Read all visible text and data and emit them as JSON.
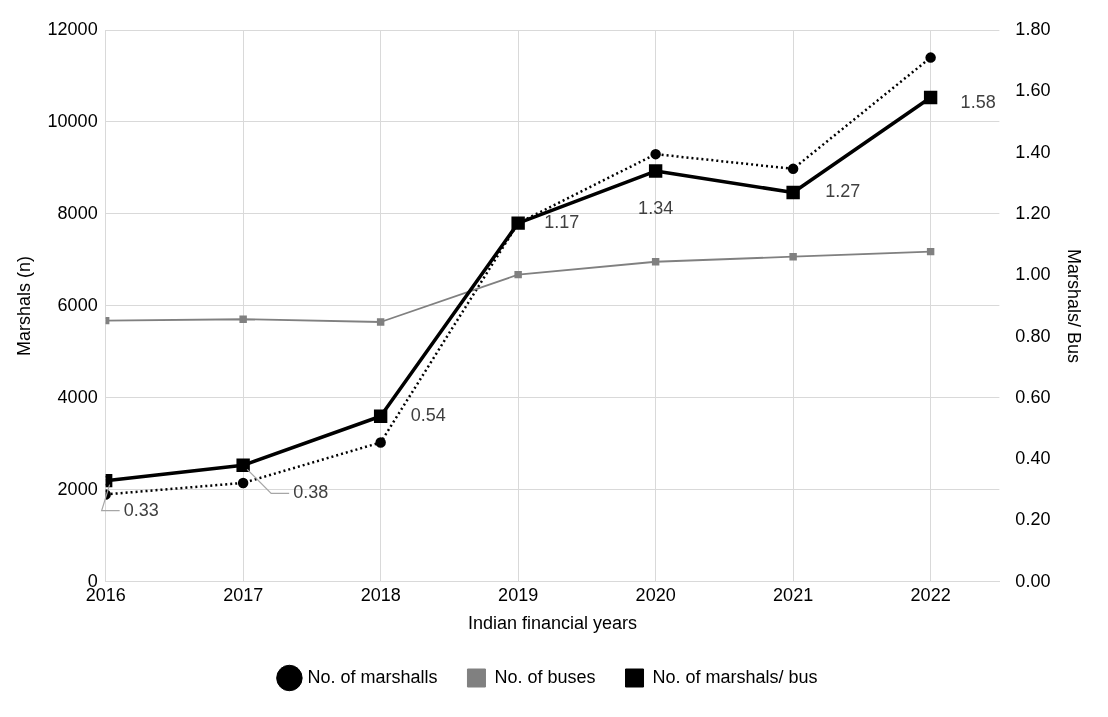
{
  "chart_data": {
    "type": "line",
    "xlabel": "Indian financial years",
    "ylabel": "Marshals (n)",
    "y2label": "Marshals/ Bus",
    "x": [
      2016,
      2017,
      2018,
      2019,
      2020,
      2021,
      2022
    ],
    "xlim": [
      2016,
      2022.5
    ],
    "xticks": [
      2016,
      2017,
      2018,
      2019,
      2020,
      2021,
      2022
    ],
    "ylim": [
      0,
      12000
    ],
    "yticks": [
      0,
      2000,
      4000,
      6000,
      8000,
      10000,
      12000
    ],
    "y2lim": [
      0,
      1.8
    ],
    "y2ticks": [
      {
        "value": 0,
        "label": "0.00"
      },
      {
        "value": 0.2,
        "label": "0.20"
      },
      {
        "value": 0.4,
        "label": "0.40"
      },
      {
        "value": 0.6,
        "label": "0.60"
      },
      {
        "value": 0.8,
        "label": "0.80"
      },
      {
        "value": 1,
        "label": "1.00"
      },
      {
        "value": 1.2,
        "label": "1.20"
      },
      {
        "value": 1.4,
        "label": "1.40"
      },
      {
        "value": 1.6,
        "label": "1.60"
      },
      {
        "value": 1.8,
        "label": "1.80"
      }
    ],
    "grid": true,
    "legend": "bottom",
    "series": [
      {
        "name": "No. of marshalls",
        "color": "#000000",
        "marker": "circle",
        "line_style": "dotted",
        "values": [
          1900,
          2150,
          3030,
          7800,
          9300,
          8980,
          11400
        ]
      },
      {
        "name": "No. of buses",
        "color": "#808080",
        "marker": "square",
        "line_style": "solid",
        "values": [
          5680,
          5710,
          5650,
          6680,
          6960,
          7070,
          7180
        ]
      },
      {
        "name": "No. of marshals/ bus",
        "color": "#000000",
        "marker": "square",
        "line_style": "solid",
        "axis": "y2",
        "values": [
          0.33,
          0.38,
          0.54,
          1.17,
          1.34,
          1.27,
          1.58
        ],
        "value_labels": [
          "0.33",
          "0.38",
          "0.54",
          "1.17",
          "1.34",
          "1.27",
          "1.58"
        ]
      }
    ]
  }
}
